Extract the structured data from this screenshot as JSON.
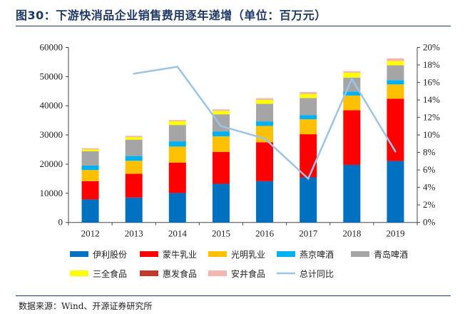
{
  "title": "图30：下游快消品企业销售费用逐年递增（单位：百万元）",
  "source": "数据来源：Wind、开源证券研究所",
  "chart_data": {
    "type": "bar",
    "stacked": true,
    "categories": [
      "2012",
      "2013",
      "2014",
      "2015",
      "2016",
      "2017",
      "2018",
      "2019"
    ],
    "y_left": {
      "range": [
        0,
        60000
      ],
      "ticks": [
        "0",
        "10000",
        "20000",
        "30000",
        "40000",
        "50000",
        "60000"
      ]
    },
    "y_right": {
      "range": [
        0,
        20
      ],
      "unit": "%",
      "ticks": [
        "0%",
        "2%",
        "4%",
        "6%",
        "8%",
        "10%",
        "12%",
        "14%",
        "16%",
        "18%",
        "20%"
      ]
    },
    "grid": false,
    "legend_placement": "bottom",
    "series": [
      {
        "name": "伊利股份",
        "color": "#0070c0",
        "values": [
          7900,
          8540,
          10100,
          13270,
          14150,
          15460,
          19760,
          21070
        ]
      },
      {
        "name": "蒙牛乳业",
        "color": "#ff0000",
        "values": [
          6250,
          8140,
          10390,
          10880,
          13340,
          14780,
          18700,
          21370
        ]
      },
      {
        "name": "光明乳业",
        "color": "#ffc000",
        "values": [
          3820,
          4470,
          5530,
          5360,
          5610,
          5130,
          5050,
          4880
        ]
      },
      {
        "name": "燕京啤酒",
        "color": "#00b0f0",
        "values": [
          1540,
          1630,
          1780,
          1710,
          1530,
          1460,
          1370,
          1460
        ]
      },
      {
        "name": "青岛啤酒",
        "color": "#a5a5a5",
        "values": [
          4880,
          5610,
          5610,
          5850,
          6030,
          5850,
          4800,
          5120
        ]
      },
      {
        "name": "三全食品",
        "color": "#ffff00",
        "values": [
          660,
          880,
          1320,
          1150,
          1390,
          1390,
          1640,
          1470
        ]
      },
      {
        "name": "惠发食品",
        "color": "#c0392b",
        "values": [
          30,
          30,
          30,
          30,
          30,
          30,
          30,
          40
        ]
      },
      {
        "name": "安井食品",
        "color": "#f4b6b0",
        "values": [
          380,
          380,
          360,
          530,
          530,
          630,
          530,
          860
        ]
      }
    ],
    "line": {
      "name": "总计同比",
      "color": "#9dc3e6",
      "axis": "right",
      "values": [
        null,
        17.0,
        17.8,
        11.0,
        9.6,
        5.0,
        16.4,
        8.1
      ]
    }
  }
}
